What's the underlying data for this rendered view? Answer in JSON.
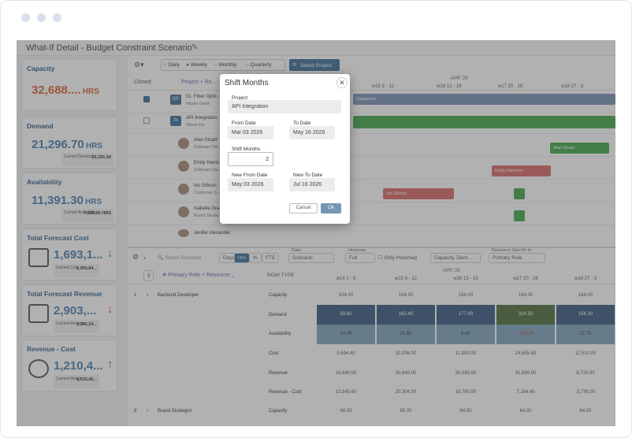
{
  "window_dots": 3,
  "page_title": "What-If Detail - Budget Constraint Scenario",
  "cards": [
    {
      "label": "Capacity",
      "value": "32,688....",
      "unit": "HRS",
      "color": "#d9653b"
    },
    {
      "label": "Demand",
      "value": "21,296.70",
      "unit": "HRS",
      "sub_label": "Current Demand",
      "sub_value": "25,391.50",
      "color": "#4a7fb0"
    },
    {
      "label": "Availability",
      "value": "11,391.30",
      "unit": "HRS",
      "sub_label": "Current Availability",
      "sub_value": "7,296.50 HRS",
      "color": "#4a7fb0"
    },
    {
      "label": "Total Forecast Cost",
      "value": "1,693,1...",
      "sub_label": "Current Cost",
      "sub_value": "2,066,84...",
      "trend": "↓",
      "trend_color": "#2e9e4a",
      "color": "#4a7fb0"
    },
    {
      "label": "Total Forecast Revenue",
      "value": "2,903,...",
      "sub_label": "Current Revenue",
      "sub_value": "3,102,24...",
      "trend": "↓",
      "trend_color": "#d9453b",
      "color": "#4a7fb0"
    },
    {
      "label": "Revenue - Cost",
      "value": "1,210,4...",
      "sub_label": "Current Margin",
      "sub_value": "1,035,40...",
      "trend": "↑",
      "trend_color": "#2e9e4a",
      "color": "#4a7fb0"
    }
  ],
  "toolbar": {
    "daily": "Daily",
    "weekly": "Weekly",
    "monthly": "Monthly",
    "quarterly": "Quarterly",
    "select_project": "Select Project"
  },
  "gantt": {
    "closed": "Closed",
    "project_header": "Project + Re...",
    "month": "APR '26",
    "weeks": [
      "w15 6 - 12",
      "w16 13 - 19",
      "w17 20 - 26",
      "w18 27 - 3"
    ],
    "rows": [
      {
        "badge": "OF",
        "name": "01. Fiber Optic...",
        "owner": "Nicole Smith"
      },
      {
        "badge": "AI",
        "name": "API Integration",
        "owner": "Alfred Kin"
      },
      {
        "name": "Alan Stuart",
        "role": "Software De..."
      },
      {
        "name": "Emily Harris...",
        "role": "Software De..."
      },
      {
        "name": "Iris Gibson",
        "role": "Customer S..."
      },
      {
        "name": "Isabella Gra...",
        "role": "Brand Strate..."
      },
      {
        "name": "Jenifer Alexander",
        "role": ""
      }
    ],
    "bars": {
      "expansion": "Expansion",
      "alan": "Alan Stuart",
      "emily": "Emily Harrison",
      "iris": "Iris Gibson"
    }
  },
  "resource_toolbar": {
    "search_placeholder": "Search Resource",
    "units": [
      "Days",
      "Hrs",
      "%",
      "FTE"
    ],
    "data_label": "Data",
    "data_value": "Scenario",
    "heatmap_label": "Heatmap",
    "heatmap_value": "Full",
    "only_heatmap": "Only Heatmap",
    "measure_value": "Capacity, Dem...",
    "resource_specific_label": "Resource Specific to",
    "resource_specific_value": "Primary Role"
  },
  "resource_grid": {
    "group_header": "Primary Role + Resource",
    "row_type": "ROW TYPE",
    "month": "APR '26",
    "weeks": [
      "w14 1 - 5",
      "w15 6 - 12",
      "w16 13 - 19",
      "w17 20 - 26",
      "w18 27 - 3"
    ],
    "groups": [
      {
        "index": "1",
        "name": "Backend Developer",
        "rows": [
          {
            "type": "Capacity",
            "values": [
              "104.00",
              "184.00",
              "184.00",
              "184.00",
              "184.00"
            ]
          },
          {
            "type": "Demand",
            "values": [
              "93.60",
              "162.40",
              "177.60",
              "324.30",
              "156.30"
            ]
          },
          {
            "type": "Availability",
            "values": [
              "10.40",
              "21.60",
              "6.40",
              "-140.30",
              "27.70"
            ]
          },
          {
            "type": "Cost",
            "values": [
              "5,694.40",
              "10,336.00",
              "11,800.00",
              "24,655.60",
              "12,510.00"
            ]
          },
          {
            "type": "Revenue",
            "values": [
              "18,640.00",
              "30,640.00",
              "30,560.00",
              "31,840.00",
              "8,720.00"
            ]
          },
          {
            "type": "Revenue - Cost",
            "values": [
              "12,945.60",
              "20,304.00",
              "18,760.00",
              "7,184.40",
              "-3,790.00"
            ]
          }
        ]
      },
      {
        "index": "8",
        "name": "Brand Strategist",
        "rows": [
          {
            "type": "Capacity",
            "values": [
              "48.00",
              "80.00",
              "64.00",
              "64.00",
              "64.00"
            ]
          }
        ]
      }
    ]
  },
  "modal": {
    "title": "Shift Months",
    "project_label": "Project",
    "project_value": "API Integration",
    "from_label": "From Date",
    "from_value": "Mar 03 2026",
    "to_label": "To Date",
    "to_value": "May 16 2026",
    "shift_label": "Shift Months",
    "shift_value": "2",
    "new_from_label": "New From Date",
    "new_from_value": "May 03 2026",
    "new_to_label": "New To Date",
    "new_to_value": "Jul 16 2026",
    "cancel": "Cancel",
    "ok": "Ok"
  }
}
